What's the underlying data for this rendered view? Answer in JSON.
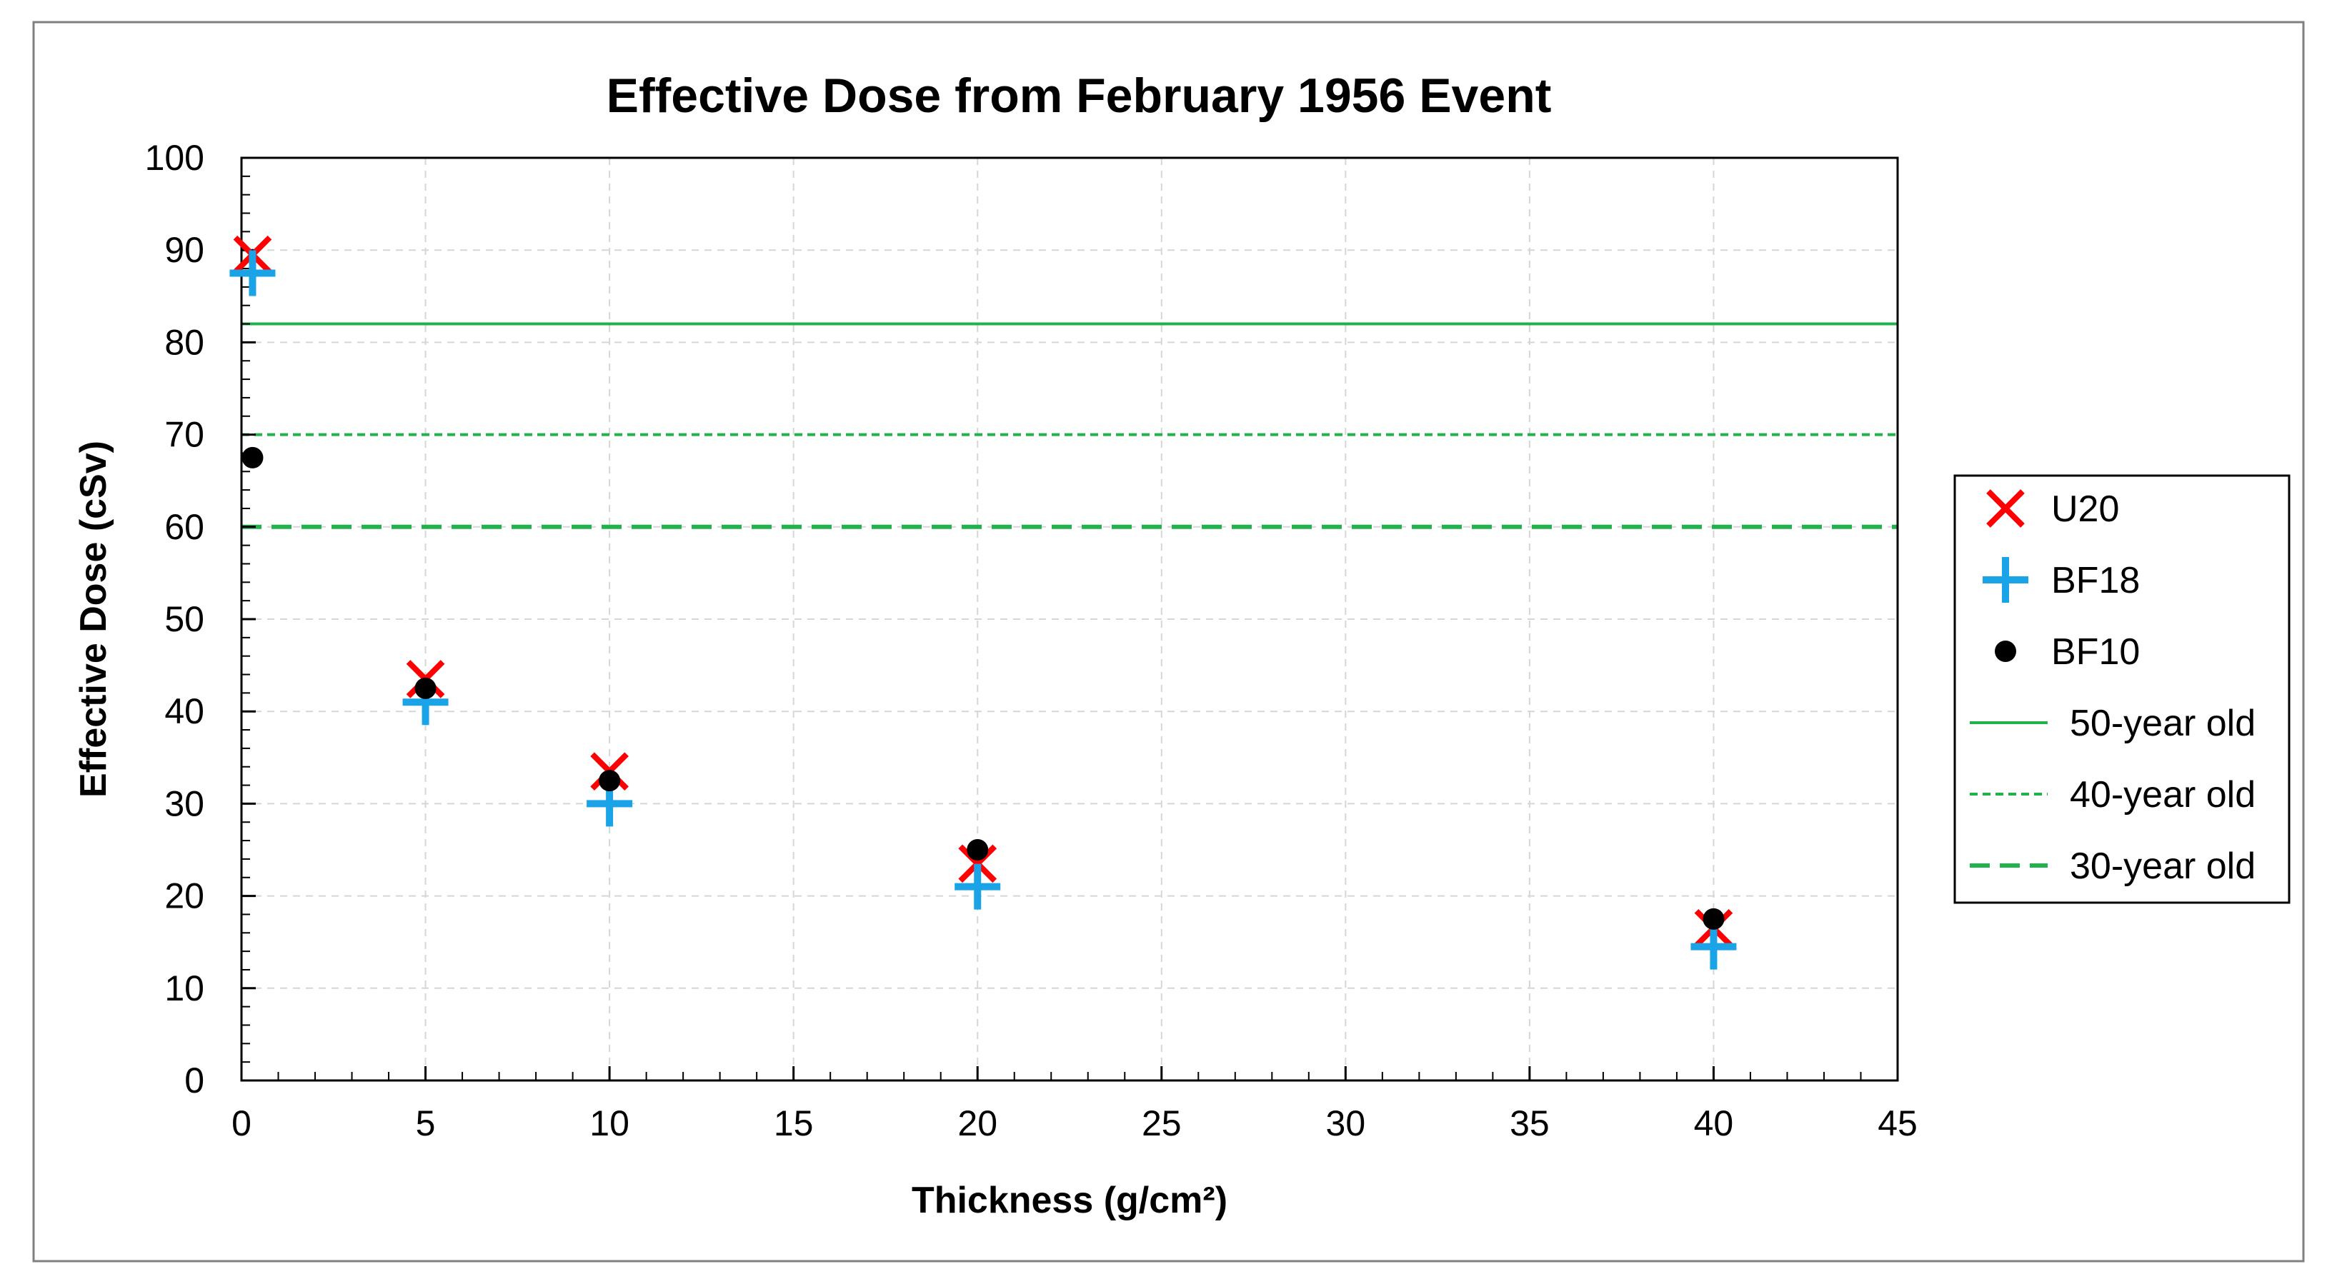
{
  "chart_data": {
    "type": "scatter",
    "title": "Effective Dose from February 1956 Event",
    "xlabel": "Thickness (g/cm²)",
    "ylabel": "Effective Dose (cSv)",
    "xlim": [
      0,
      45
    ],
    "ylim": [
      0,
      100
    ],
    "x_ticks": [
      0,
      5,
      10,
      15,
      20,
      25,
      30,
      35,
      40,
      45
    ],
    "y_ticks": [
      0,
      10,
      20,
      30,
      40,
      50,
      60,
      70,
      80,
      90,
      100
    ],
    "x_tick_labels": [
      "0",
      "5",
      "10",
      "15",
      "20",
      "25",
      "30",
      "35",
      "40",
      "45"
    ],
    "y_tick_labels": [
      "0",
      "10",
      "20",
      "30",
      "40",
      "50",
      "60",
      "70",
      "80",
      "90",
      "100"
    ],
    "grid": true,
    "legend_position": "right",
    "series": [
      {
        "name": "U20",
        "marker": "x",
        "color": "#ff0000",
        "x": [
          0.3,
          5,
          10,
          20,
          40
        ],
        "y": [
          89.5,
          43.5,
          33.5,
          23.5,
          16.5
        ]
      },
      {
        "name": "BF18",
        "marker": "plus",
        "color": "#1aa3e6",
        "x": [
          0.3,
          5,
          10,
          20,
          40
        ],
        "y": [
          87.5,
          41,
          30,
          21,
          14.5
        ]
      },
      {
        "name": "BF10",
        "marker": "circle",
        "color": "#000000",
        "x": [
          0.3,
          5,
          10,
          20,
          40
        ],
        "y": [
          67.5,
          42.5,
          32.5,
          25,
          17.5
        ]
      }
    ],
    "reference_lines": [
      {
        "name": "50-year old",
        "y": 82,
        "style": "solid",
        "color": "#21b24b"
      },
      {
        "name": "40-year old",
        "y": 70,
        "style": "dotted",
        "color": "#21b24b"
      },
      {
        "name": "30-year old",
        "y": 60,
        "style": "dashed",
        "color": "#21b24b"
      }
    ]
  }
}
